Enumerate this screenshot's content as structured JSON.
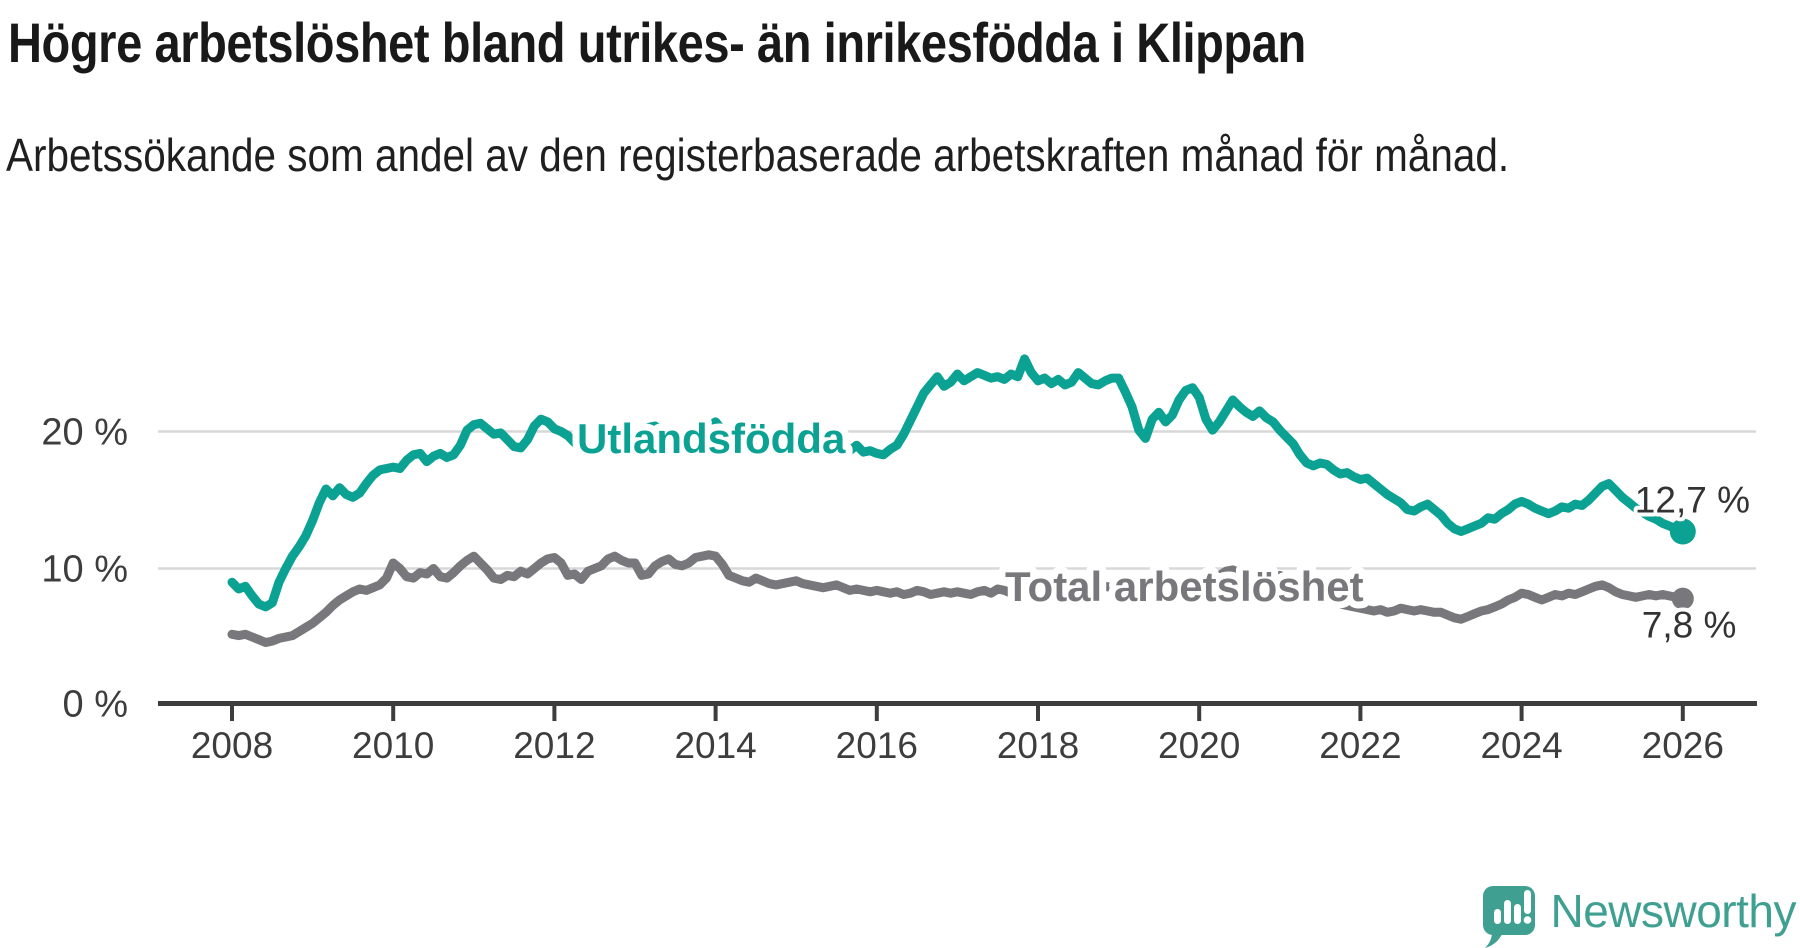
{
  "header": {
    "title": "Högre arbetslöshet bland utrikes- än inrikesfödda i Klippan",
    "subtitle": "Arbetssökande som andel av den registerbaserade arbetskraften månad för månad."
  },
  "footer": {
    "brand": "Newsworthy"
  },
  "colors": {
    "teal_line": "#0ba293",
    "gray_line": "#77777c",
    "grid": "#d8d8d8",
    "axis": "#3d3d3d",
    "tick_label": "#3d3d3d",
    "value_label": "#333333",
    "title_text": "#191919",
    "logo_teal": "#3fa092",
    "background": "#ffffff"
  },
  "chart_data": {
    "type": "line",
    "title": "Högre arbetslöshet bland utrikes- än inrikesfödda i Klippan",
    "subtitle": "Arbetssökande som andel av den registerbaserade arbetskraften månad för månad.",
    "frequency": "monthly",
    "x_start_year": 2008,
    "x_end_year": 2026,
    "x_tick_years": [
      2008,
      2010,
      2012,
      2014,
      2016,
      2018,
      2020,
      2022,
      2024,
      2026
    ],
    "x_tick_labels": [
      "2008",
      "2010",
      "2012",
      "2014",
      "2016",
      "2018",
      "2020",
      "2022",
      "2024",
      "2026"
    ],
    "y_ticks": [
      {
        "value": 0,
        "label": "0 %"
      },
      {
        "value": 10,
        "label": "10 %"
      },
      {
        "value": 20,
        "label": "20 %"
      }
    ],
    "ylim": [
      0,
      27
    ],
    "unit": "%",
    "grid": "horizontal-only",
    "legend_position": "inline-labels",
    "series": [
      {
        "name": "Utlandsfödda",
        "color": "#0ba293",
        "end_value": 12.7,
        "end_label": "12,7 %",
        "values": [
          9.0,
          8.5,
          8.7,
          8.0,
          7.4,
          7.2,
          7.5,
          9.0,
          10.0,
          10.9,
          11.6,
          12.4,
          13.5,
          14.8,
          15.8,
          15.3,
          15.9,
          15.4,
          15.2,
          15.5,
          16.2,
          16.8,
          17.2,
          17.3,
          17.4,
          17.3,
          17.9,
          18.3,
          18.4,
          17.8,
          18.2,
          18.4,
          18.1,
          18.3,
          19.0,
          20.1,
          20.5,
          20.6,
          20.2,
          19.8,
          19.9,
          19.4,
          18.9,
          18.8,
          19.4,
          20.4,
          20.9,
          20.7,
          20.2,
          20.0,
          19.7,
          19.2,
          18.9,
          19.1,
          19.6,
          19.8,
          20.2,
          20.5,
          20.1,
          20.0,
          19.7,
          19.8,
          20.3,
          20.4,
          19.9,
          20.0,
          19.7,
          19.8,
          19.4,
          19.2,
          19.6,
          20.4,
          20.7,
          20.1,
          19.9,
          19.3,
          18.8,
          18.9,
          19.2,
          18.7,
          18.8,
          19.1,
          18.9,
          19.1,
          19.2,
          19.4,
          19.1,
          19.3,
          19.5,
          19.3,
          20.0,
          19.0,
          18.6,
          19.0,
          18.5,
          18.6,
          18.4,
          18.3,
          18.7,
          19.0,
          19.8,
          20.8,
          21.8,
          22.8,
          23.4,
          24.0,
          23.3,
          23.6,
          24.2,
          23.7,
          24.0,
          24.3,
          24.1,
          23.9,
          24.0,
          23.8,
          24.2,
          24.0,
          25.3,
          24.3,
          23.7,
          23.9,
          23.5,
          23.8,
          23.4,
          23.6,
          24.3,
          23.9,
          23.5,
          23.4,
          23.7,
          23.9,
          23.9,
          22.9,
          21.8,
          20.1,
          19.5,
          20.9,
          21.4,
          20.7,
          21.2,
          22.3,
          23.0,
          23.2,
          22.5,
          20.9,
          20.1,
          20.7,
          21.5,
          22.3,
          21.8,
          21.4,
          21.1,
          21.5,
          21.0,
          20.7,
          20.1,
          19.6,
          19.1,
          18.3,
          17.7,
          17.5,
          17.7,
          17.6,
          17.2,
          16.9,
          17.0,
          16.7,
          16.5,
          16.6,
          16.2,
          15.8,
          15.4,
          15.1,
          14.8,
          14.3,
          14.2,
          14.5,
          14.7,
          14.3,
          13.9,
          13.3,
          12.9,
          12.7,
          12.9,
          13.1,
          13.3,
          13.7,
          13.6,
          14.0,
          14.3,
          14.7,
          14.9,
          14.7,
          14.4,
          14.2,
          14.0,
          14.2,
          14.5,
          14.4,
          14.7,
          14.6,
          15.0,
          15.5,
          16.0,
          16.2,
          15.7,
          15.2,
          14.8,
          14.4,
          14.1,
          13.8,
          13.6,
          13.3,
          13.1,
          12.9,
          12.7
        ]
      },
      {
        "name": "Total arbetslöshet",
        "color": "#77777c",
        "end_value": 7.8,
        "end_label": "7,8 %",
        "values": [
          5.2,
          5.1,
          5.2,
          5.0,
          4.8,
          4.6,
          4.7,
          4.9,
          5.0,
          5.1,
          5.4,
          5.7,
          6.0,
          6.4,
          6.8,
          7.3,
          7.7,
          8.0,
          8.3,
          8.5,
          8.4,
          8.6,
          8.8,
          9.3,
          10.4,
          10.0,
          9.4,
          9.3,
          9.7,
          9.6,
          10.0,
          9.4,
          9.3,
          9.7,
          10.2,
          10.6,
          10.9,
          10.4,
          9.9,
          9.3,
          9.2,
          9.5,
          9.4,
          9.8,
          9.6,
          10.0,
          10.4,
          10.7,
          10.8,
          10.4,
          9.5,
          9.6,
          9.2,
          9.8,
          10.0,
          10.2,
          10.7,
          10.9,
          10.6,
          10.4,
          10.4,
          9.5,
          9.6,
          10.2,
          10.5,
          10.7,
          10.3,
          10.2,
          10.4,
          10.8,
          10.9,
          11.0,
          10.9,
          10.3,
          9.5,
          9.3,
          9.1,
          9.0,
          9.3,
          9.1,
          8.9,
          8.8,
          8.9,
          9.0,
          9.1,
          8.9,
          8.8,
          8.7,
          8.6,
          8.7,
          8.8,
          8.6,
          8.4,
          8.5,
          8.4,
          8.3,
          8.4,
          8.3,
          8.2,
          8.3,
          8.1,
          8.2,
          8.4,
          8.3,
          8.1,
          8.2,
          8.3,
          8.2,
          8.3,
          8.2,
          8.1,
          8.3,
          8.4,
          8.2,
          8.5,
          8.4,
          8.2,
          8.3,
          8.5,
          8.4,
          8.5,
          8.4,
          8.3,
          8.5,
          8.6,
          8.7,
          8.6,
          8.5,
          8.4,
          8.6,
          8.7,
          8.6,
          8.5,
          8.3,
          8.0,
          7.8,
          7.7,
          7.9,
          8.1,
          8.0,
          8.2,
          8.4,
          8.6,
          8.7,
          8.8,
          8.7,
          9.0,
          9.5,
          9.8,
          9.9,
          9.7,
          9.6,
          9.5,
          9.4,
          9.5,
          9.4,
          9.5,
          9.3,
          9.1,
          8.8,
          8.5,
          8.2,
          8.0,
          7.8,
          7.6,
          7.4,
          7.3,
          7.2,
          7.1,
          7.0,
          6.9,
          7.0,
          6.8,
          6.9,
          7.1,
          7.0,
          6.9,
          7.0,
          6.9,
          6.8,
          6.8,
          6.6,
          6.4,
          6.3,
          6.5,
          6.7,
          6.9,
          7.0,
          7.2,
          7.4,
          7.7,
          7.9,
          8.2,
          8.1,
          7.9,
          7.7,
          7.9,
          8.1,
          8.0,
          8.2,
          8.1,
          8.3,
          8.5,
          8.7,
          8.8,
          8.6,
          8.3,
          8.1,
          8.0,
          7.9,
          8.0,
          8.1,
          8.0,
          8.1,
          8.0,
          7.9,
          7.8
        ]
      }
    ]
  }
}
